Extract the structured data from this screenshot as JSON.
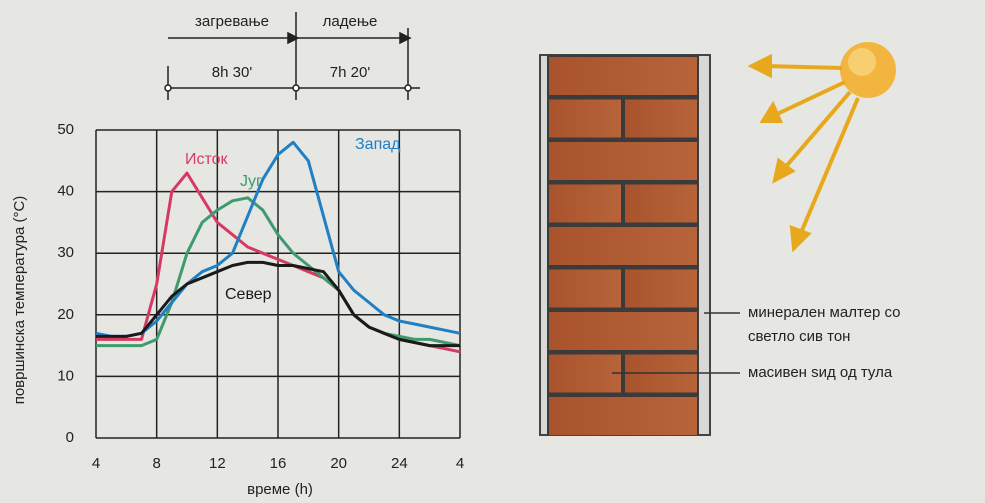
{
  "chart_data": {
    "type": "line",
    "x_label": "време (h)",
    "y_label": "површинска температура (°C)",
    "x": [
      4,
      5,
      6,
      7,
      8,
      9,
      10,
      11,
      12,
      13,
      14,
      15,
      16,
      17,
      18,
      19,
      20,
      21,
      22,
      23,
      24,
      25,
      26,
      27,
      28
    ],
    "series": [
      {
        "name": "Исток",
        "color": "#d63a62",
        "values": [
          16,
          16,
          16,
          16,
          25,
          40,
          43,
          39,
          35,
          33,
          31,
          30,
          29,
          28,
          27,
          26,
          24,
          20,
          18,
          17,
          16,
          15.5,
          15,
          14.5,
          14
        ]
      },
      {
        "name": "Југ",
        "color": "#3f9a6e",
        "values": [
          15,
          15,
          15,
          15,
          16,
          22,
          30,
          35,
          37,
          38.5,
          39,
          37,
          33,
          30,
          28,
          26,
          24,
          20,
          18,
          17,
          16.5,
          16,
          16,
          15.5,
          15
        ]
      },
      {
        "name": "Запад",
        "color": "#1f80c4",
        "values": [
          17,
          16.5,
          16.5,
          17,
          19,
          22,
          25,
          27,
          28,
          30,
          36,
          42,
          46,
          48,
          45,
          36,
          27,
          24,
          22,
          20,
          19,
          18.5,
          18,
          17.5,
          17
        ]
      },
      {
        "name": "Север",
        "color": "#1a1a1a",
        "values": [
          16.5,
          16.5,
          16.5,
          17,
          20,
          23,
          25,
          26,
          27,
          28,
          28.5,
          28.5,
          28,
          28,
          27.5,
          27,
          24,
          20,
          18,
          17,
          16,
          15.5,
          15,
          15,
          15
        ]
      }
    ],
    "xlim": [
      4,
      28
    ],
    "xticks": [
      4,
      8,
      12,
      16,
      20,
      24,
      {
        "value": 28,
        "label": "4"
      }
    ],
    "ylim": [
      0,
      50
    ],
    "yticks": [
      0,
      10,
      20,
      30,
      40,
      50
    ],
    "grid": true,
    "phases": [
      {
        "name": "загревање",
        "duration": "8h 30'"
      },
      {
        "name": "ладење",
        "duration": "7h 20'"
      }
    ]
  },
  "diagram": {
    "labels": [
      "минерален малтер со",
      "светло сив тон",
      "масивен ѕид од тула"
    ]
  }
}
